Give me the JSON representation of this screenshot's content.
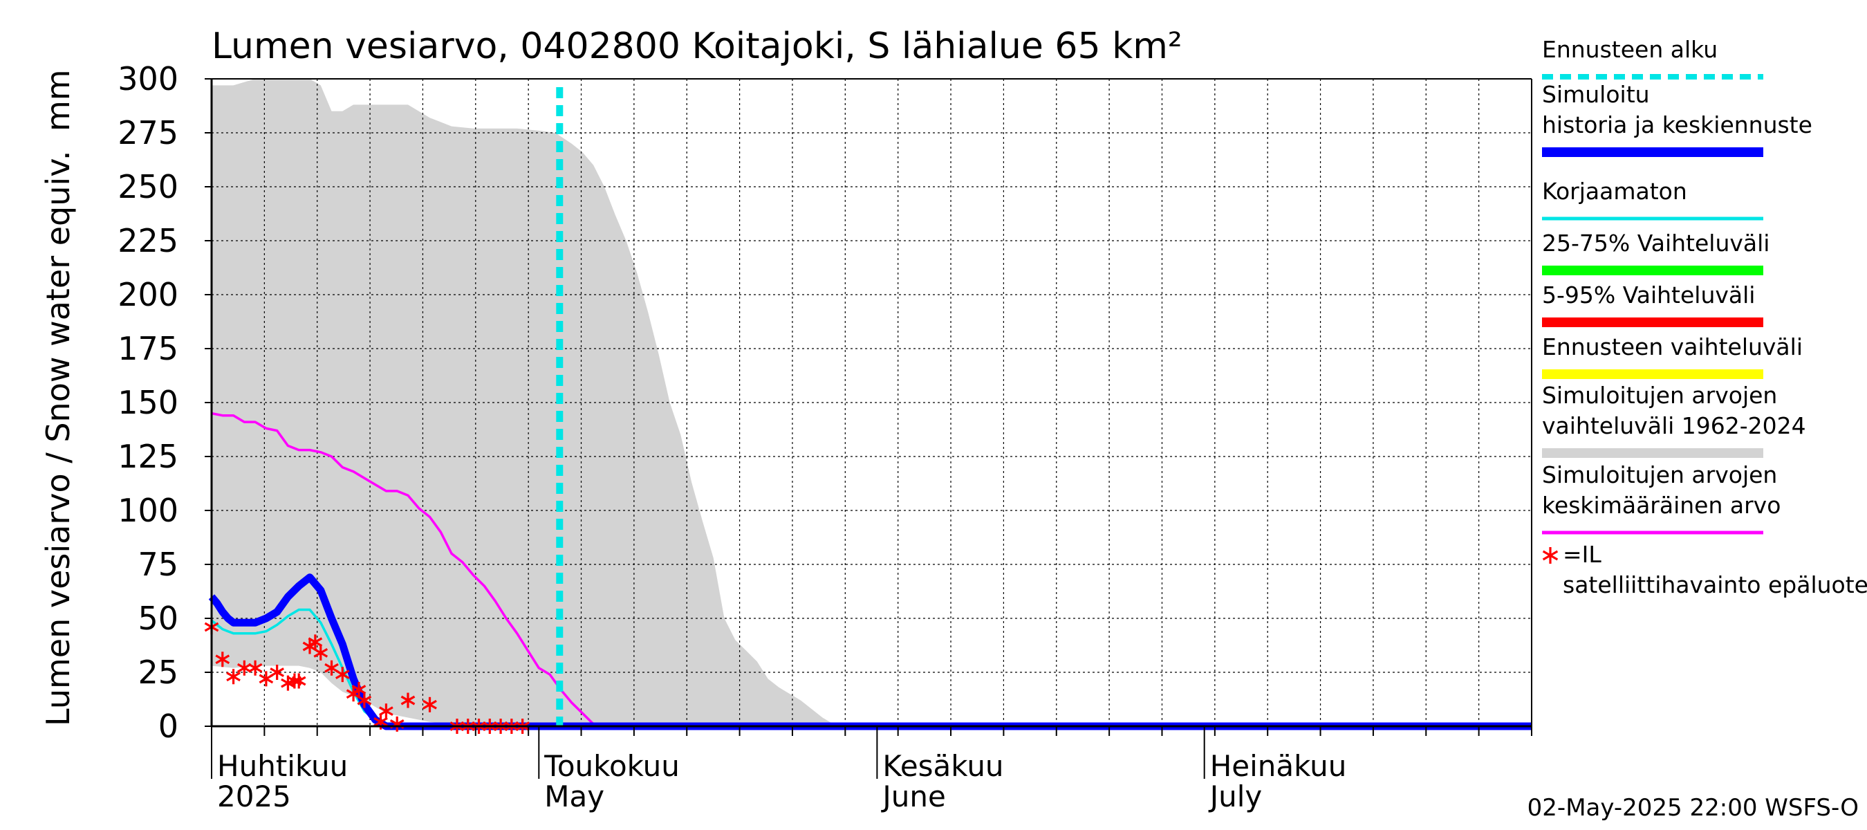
{
  "chart_data": {
    "type": "line",
    "title": "Lumen vesiarvo, 0402800 Koitajoki, S lähialue 65 km²",
    "ylabel": "Lumen vesiarvo / Snow water equiv.",
    "yunit": "mm",
    "ylim": [
      0,
      300
    ],
    "yticks": [
      0,
      25,
      50,
      75,
      100,
      125,
      150,
      175,
      200,
      225,
      250,
      275,
      300
    ],
    "xlim_days": [
      0,
      121
    ],
    "x_start_date": "2025-04-01",
    "months": [
      {
        "day": 0,
        "fi": "Huhtikuu",
        "en": "2025"
      },
      {
        "day": 30,
        "fi": "Toukokuu",
        "en": "May"
      },
      {
        "day": 61,
        "fi": "Kesäkuu",
        "en": "June"
      },
      {
        "day": 91,
        "fi": "Heinäkuu",
        "en": "July"
      }
    ],
    "forecast_start_day": 31.9,
    "series": [
      {
        "name": "Simuloitujen arvojen vaihteluväli 1962-2024",
        "kind": "band",
        "color": "#d3d3d3",
        "x": [
          0,
          2,
          4,
          6,
          8,
          9,
          10,
          11,
          12,
          13,
          14,
          16,
          18,
          20,
          22,
          24,
          26,
          28,
          30,
          31.5,
          33,
          34,
          35,
          36,
          37,
          38,
          39,
          40,
          41,
          42,
          43,
          44,
          45,
          46,
          47,
          48,
          49,
          50,
          51,
          52,
          53,
          54,
          55,
          56,
          57,
          57.5,
          121
        ],
        "upper": [
          297,
          297,
          300,
          300,
          300,
          300,
          297,
          285,
          285,
          288,
          288,
          288,
          288,
          282,
          278,
          277,
          277,
          277,
          276,
          275,
          270,
          266,
          260,
          250,
          237,
          225,
          210,
          192,
          172,
          150,
          135,
          113,
          95,
          78,
          50,
          40,
          35,
          30,
          22,
          18,
          15,
          12,
          8,
          4,
          1,
          0,
          0
        ],
        "lower": [
          28,
          27,
          28,
          28,
          28,
          27,
          25,
          20,
          16,
          14,
          12,
          6,
          4,
          2,
          1,
          0,
          0,
          0,
          0,
          0,
          0,
          0,
          0,
          0,
          0,
          0,
          0,
          0,
          0,
          0,
          0,
          0,
          0,
          0,
          0,
          0,
          0,
          0,
          0,
          0,
          0,
          0,
          0,
          0,
          0,
          0,
          0
        ]
      },
      {
        "name": "Simuloitujen arvojen keskimääräinen arvo",
        "kind": "line",
        "color": "#ff00ff",
        "x": [
          0,
          1,
          2,
          3,
          4,
          5,
          6,
          7,
          8,
          9,
          10,
          11,
          12,
          13,
          14,
          15,
          16,
          17,
          18,
          19,
          20,
          21,
          22,
          23,
          24,
          25,
          26,
          27,
          28,
          29,
          30,
          31,
          32,
          33,
          34,
          35,
          36,
          37,
          38,
          39,
          121
        ],
        "values": [
          145,
          144,
          144,
          141,
          141,
          138,
          137,
          130,
          128,
          128,
          127,
          125,
          120,
          118,
          115,
          112,
          109,
          109,
          107,
          101,
          97,
          90,
          80,
          76,
          70,
          65,
          58,
          50,
          43,
          35,
          27,
          24,
          17,
          11,
          6,
          1,
          0,
          0,
          0,
          0,
          0
        ]
      },
      {
        "name": "Korjaamaton",
        "kind": "line",
        "color": "#00e5e5",
        "x": [
          0,
          0.5,
          1,
          1.5,
          2,
          3,
          4,
          5,
          6,
          7,
          8,
          9,
          10,
          11,
          12,
          13,
          14,
          15,
          16,
          17,
          18,
          19,
          20,
          21,
          22,
          23,
          24,
          25,
          26,
          27,
          28,
          29,
          30,
          31,
          32
        ],
        "values": [
          49,
          47,
          45,
          44,
          43,
          43,
          43,
          44,
          47,
          51,
          54,
          54,
          48,
          38,
          27,
          16,
          7,
          3,
          1,
          0,
          0,
          0,
          0,
          0,
          0,
          0,
          0,
          0,
          0,
          0,
          0,
          0,
          0,
          0,
          0
        ]
      },
      {
        "name": "Simuloitu historia ja keskiennuste",
        "kind": "line",
        "color": "#0000ff",
        "x": [
          0,
          0.5,
          1,
          1.5,
          2,
          3,
          4,
          5,
          6,
          7,
          8,
          9,
          10,
          11,
          12,
          13,
          14,
          15,
          16,
          17,
          18,
          19,
          20,
          21,
          22,
          23,
          24,
          25,
          26,
          27,
          28,
          29,
          30,
          31,
          31.9,
          121
        ],
        "values": [
          60,
          57,
          53,
          50,
          48,
          48,
          48,
          50,
          53,
          60,
          65,
          69,
          63,
          50,
          38,
          22,
          10,
          3,
          0,
          0,
          0,
          0,
          0,
          0,
          0,
          0,
          0,
          0,
          0,
          0,
          0,
          0,
          0,
          0,
          0,
          0
        ]
      }
    ],
    "satellite_points": {
      "name": "=IL satelliittihavainto epäluotettava",
      "color": "#ff0000",
      "x": [
        0,
        1,
        2,
        3,
        4,
        5,
        6,
        7,
        7.6,
        8,
        9,
        9.5,
        10,
        11,
        12,
        13,
        13.5,
        14,
        15.5,
        16,
        17,
        18,
        20,
        22.5,
        23.5,
        24.5,
        25.5,
        26.5,
        27.5,
        28.5
      ],
      "values": [
        46,
        31,
        23,
        27,
        27,
        22,
        25,
        20,
        21,
        21,
        37,
        39,
        34,
        27,
        24,
        15,
        17,
        12,
        2,
        7,
        1,
        12,
        10,
        0,
        0,
        0,
        0,
        0,
        0,
        0
      ]
    },
    "legend": [
      {
        "label": "Ennusteen alku",
        "color": "#00e5e5",
        "style": "dashed"
      },
      {
        "label": "Simuloitu historia ja keskiennuste",
        "color": "#0000ff",
        "style": "thick"
      },
      {
        "label": "Korjaamaton",
        "color": "#00e5e5",
        "style": "solid"
      },
      {
        "label": "25-75% Vaihteluväli",
        "color": "#00ff00",
        "style": "thick"
      },
      {
        "label": "5-95% Vaihteluväli",
        "color": "#ff0000",
        "style": "thick"
      },
      {
        "label": "Ennusteen vaihteluväli",
        "color": "#ffff00",
        "style": "thick"
      },
      {
        "label": "Simuloitujen arvojen vaihteluväli 1962-2024",
        "color": "#d3d3d3",
        "style": "thick"
      },
      {
        "label": "Simuloitujen arvojen keskimääräinen arvo",
        "color": "#ff00ff",
        "style": "solid"
      },
      {
        "label": "=IL satelliittihavainto epäluotettava",
        "color": "#ff0000",
        "style": "marker"
      }
    ],
    "footer": "02-May-2025 22:00 WSFS-O"
  }
}
